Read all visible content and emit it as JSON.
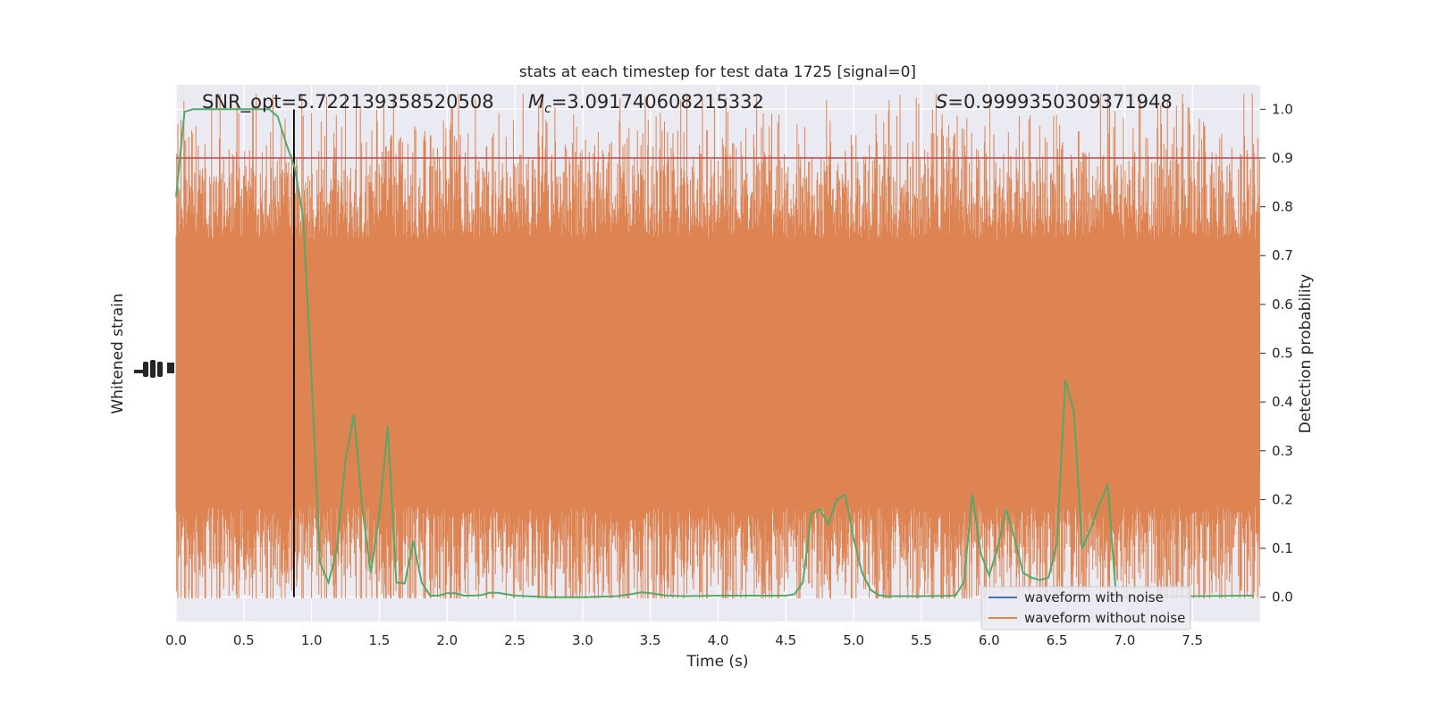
{
  "chart_data": {
    "type": "line",
    "title": "stats at each timestep for test data 1725 [signal=0]",
    "xlabel": "Time (s)",
    "ylabel_left": "Whitened strain",
    "ylabel_right": "Detection probability",
    "xlim": [
      0.0,
      8.0
    ],
    "ylim_right": [
      -0.05,
      1.05
    ],
    "x_ticks": [
      "0.0",
      "0.5",
      "1.0",
      "1.5",
      "2.0",
      "2.5",
      "3.0",
      "3.5",
      "4.0",
      "4.5",
      "5.0",
      "5.5",
      "6.0",
      "6.5",
      "7.0",
      "7.5"
    ],
    "y_ticks_right": [
      "0.0",
      "0.1",
      "0.2",
      "0.3",
      "0.4",
      "0.5",
      "0.6",
      "0.7",
      "0.8",
      "0.9",
      "1.0"
    ],
    "grid": true,
    "annotations": {
      "snr": "SNR_opt=5.722139358520508",
      "mc_symbol": "M",
      "mc_sub": "c",
      "mc_value": "=3.091740608215332",
      "s_symbol": "S",
      "s_value": "=0.9999350309371948"
    },
    "threshold": {
      "y": 0.9,
      "color": "#c44e52"
    },
    "marker_time": 0.87,
    "legend": {
      "placement": "lower-right",
      "entries": [
        {
          "label": "waveform with noise",
          "color": "#4c72b0"
        },
        {
          "label": "waveform without noise",
          "color": "#dd8452"
        }
      ]
    },
    "series": [
      {
        "color": "#55a868",
        "x": [
          0.0,
          0.0625,
          0.125,
          0.1875,
          0.25,
          0.3125,
          0.375,
          0.4375,
          0.5,
          0.5625,
          0.625,
          0.6875,
          0.75,
          0.8125,
          0.875,
          0.9375,
          1.0,
          1.0625,
          1.125,
          1.1875,
          1.25,
          1.3125,
          1.375,
          1.4375,
          1.5,
          1.5625,
          1.625,
          1.6875,
          1.75,
          1.8125,
          1.875,
          1.9375,
          2.0,
          2.0625,
          2.125,
          2.1875,
          2.25,
          2.3125,
          2.375,
          2.4375,
          2.5,
          2.75,
          3.0,
          3.25,
          3.375,
          3.4375,
          3.5,
          3.625,
          3.75,
          4.0,
          4.25,
          4.5,
          4.5625,
          4.625,
          4.6875,
          4.75,
          4.8125,
          4.875,
          4.9375,
          5.0,
          5.0625,
          5.125,
          5.1875,
          5.25,
          5.5,
          5.75,
          5.8125,
          5.875,
          5.9375,
          6.0,
          6.0625,
          6.125,
          6.1875,
          6.25,
          6.3125,
          6.375,
          6.4375,
          6.5,
          6.5625,
          6.625,
          6.6875,
          6.75,
          6.8125,
          6.875,
          6.9375,
          7.0,
          7.5,
          7.95
        ],
        "values": [
          0.82,
          0.995,
          1.0,
          1.0,
          1.0,
          1.0,
          1.0,
          1.0,
          1.0,
          1.0,
          1.0,
          1.0,
          0.985,
          0.93,
          0.88,
          0.78,
          0.45,
          0.07,
          0.03,
          0.1,
          0.28,
          0.375,
          0.18,
          0.05,
          0.17,
          0.35,
          0.03,
          0.028,
          0.115,
          0.03,
          0.003,
          0.003,
          0.008,
          0.008,
          0.003,
          0.003,
          0.004,
          0.009,
          0.009,
          0.006,
          0.003,
          0.0,
          0.0,
          0.002,
          0.007,
          0.01,
          0.008,
          0.003,
          0.002,
          0.003,
          0.003,
          0.003,
          0.006,
          0.03,
          0.17,
          0.18,
          0.15,
          0.2,
          0.21,
          0.12,
          0.05,
          0.015,
          0.004,
          0.002,
          0.002,
          0.003,
          0.03,
          0.21,
          0.09,
          0.045,
          0.1,
          0.18,
          0.12,
          0.05,
          0.04,
          0.035,
          0.04,
          0.11,
          0.445,
          0.38,
          0.1,
          0.14,
          0.19,
          0.23,
          0.0,
          0.0,
          0.002,
          0.003
        ]
      }
    ]
  }
}
